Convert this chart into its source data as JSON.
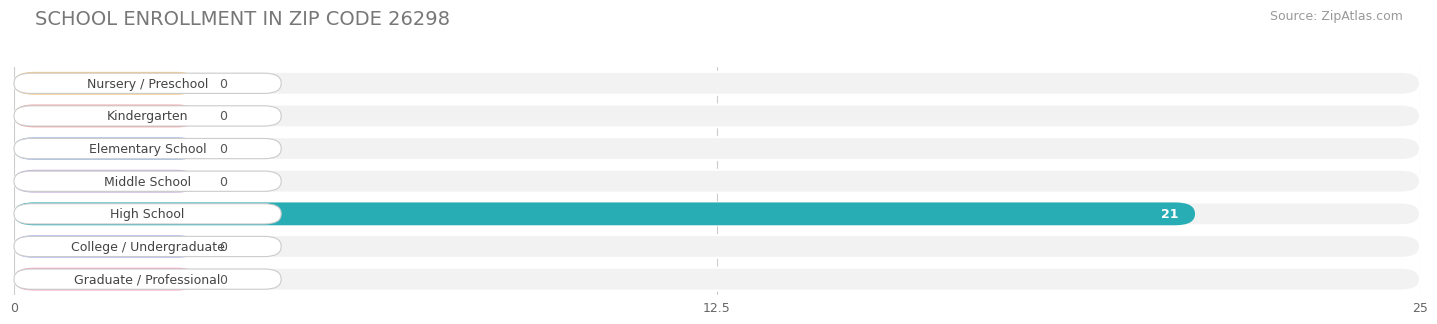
{
  "title": "SCHOOL ENROLLMENT IN ZIP CODE 26298",
  "source": "Source: ZipAtlas.com",
  "categories": [
    "Nursery / Preschool",
    "Kindergarten",
    "Elementary School",
    "Middle School",
    "High School",
    "College / Undergraduate",
    "Graduate / Professional"
  ],
  "values": [
    0,
    0,
    0,
    0,
    21,
    0,
    0
  ],
  "bar_colors": [
    "#f5c98a",
    "#f0a0a0",
    "#b0c4e8",
    "#c4b0d8",
    "#29adb5",
    "#b8c4f0",
    "#f5a8c0"
  ],
  "xlim": [
    0,
    25
  ],
  "xticks": [
    0,
    12.5,
    25
  ],
  "background_color": "#ffffff",
  "bar_bg_color": "#e8e8e8",
  "row_bg_color": "#f2f2f2",
  "title_fontsize": 14,
  "source_fontsize": 9,
  "label_fontsize": 9,
  "value_fontsize": 9
}
